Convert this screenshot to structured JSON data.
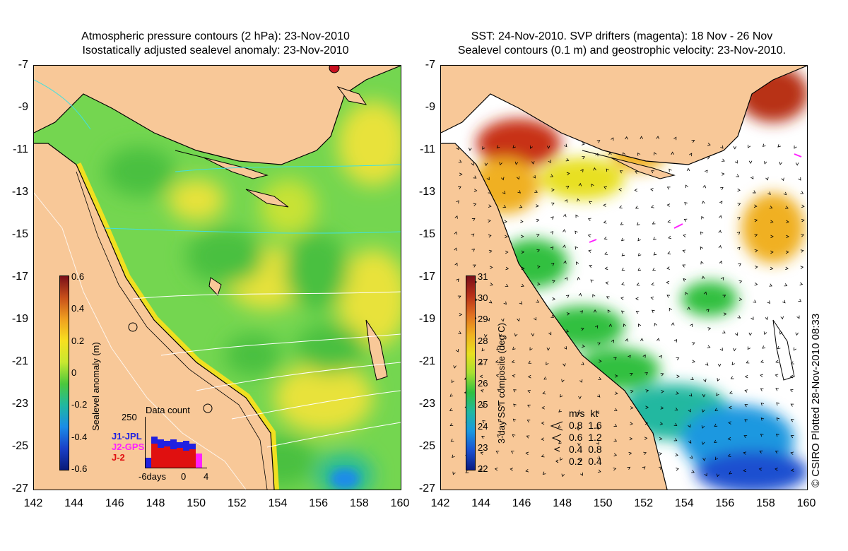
{
  "left_panel": {
    "title_line1": "Atmospheric pressure contours (2 hPa): 23-Nov-2010",
    "title_line2": "Isostatically adjusted sealevel anomaly: 23-Nov-2010",
    "colorbar_label": "Sealevel anomaly (m)",
    "colorbar_ticks": [
      "0.6",
      "0.4",
      "0.2",
      "0",
      "-0.2",
      "-0.4",
      "-0.6"
    ],
    "colorbar_colors": [
      "#7a0f1a",
      "#c8501a",
      "#f0a020",
      "#f7e020",
      "#c8e830",
      "#4cc83c",
      "#20b8a0",
      "#1a8ce8",
      "#1a40c8",
      "#0a1a78"
    ],
    "data_count": {
      "title": "Data count",
      "max_label": "250",
      "x_labels": [
        "-6days",
        "0",
        "4"
      ],
      "legend": [
        {
          "name": "J1-JPL",
          "color": "#2020e0"
        },
        {
          "name": "J2-GPS",
          "color": "#ff20ff"
        },
        {
          "name": "J-2",
          "color": "#e01010"
        }
      ]
    }
  },
  "right_panel": {
    "title_line1": "SST: 24-Nov-2010. SVP drifters (magenta): 18 Nov - 26 Nov",
    "title_line2": "Sealevel contours (0.1 m) and geostrophic velocity: 23-Nov-2010.",
    "colorbar_label": "3-day SST composite (deg C)",
    "colorbar_ticks": [
      "31",
      "30",
      "29",
      "28",
      "27",
      "26",
      "25",
      "24",
      "23",
      "22"
    ],
    "colorbar_colors": [
      "#7a0f1a",
      "#b83018",
      "#e07020",
      "#f0b020",
      "#e8e020",
      "#a8e030",
      "#30c040",
      "#20b8a0",
      "#1a98e0",
      "#1a50d0",
      "#0a1a80"
    ],
    "velocity_legend": {
      "header": "m/s  kt",
      "rows": [
        "0.8  1.6",
        "0.6  1.2",
        "0.4  0.8",
        "0.2  0.4"
      ]
    },
    "copyright": "© CSIRO Plotted 28-Nov-2010 08:33"
  },
  "axes": {
    "lat_ticks": [
      "-7",
      "-9",
      "-11",
      "-13",
      "-15",
      "-17",
      "-19",
      "-21",
      "-23",
      "-25",
      "-27"
    ],
    "lon_ticks": [
      "142",
      "144",
      "146",
      "148",
      "150",
      "152",
      "154",
      "156",
      "158",
      "160"
    ]
  },
  "colors": {
    "land": "#f8c898",
    "ocean_green": "#6cd44c",
    "ocean_yellow": "#e8e23a",
    "coast": "#000000"
  }
}
